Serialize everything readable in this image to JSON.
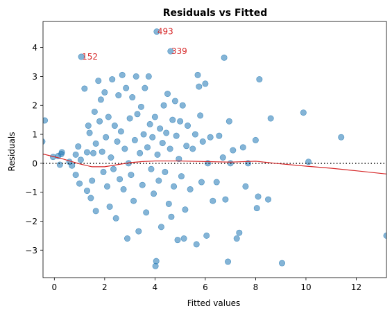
{
  "chart_data": {
    "type": "scatter",
    "title": "Residuals vs Fitted",
    "xlabel": "Fitted values",
    "ylabel": "Residuals",
    "xlim": [
      -0.45,
      13.2
    ],
    "ylim": [
      -3.95,
      4.9
    ],
    "x_ticks": [
      0,
      2,
      4,
      6,
      8,
      10,
      12
    ],
    "y_ticks": [
      -3,
      -2,
      -1,
      0,
      1,
      2,
      3,
      4
    ],
    "grid": false,
    "colors": {
      "points": "#1f77b4",
      "lowess": "#d62728",
      "annotation": "#d62728",
      "reference": "#000000"
    },
    "reference_line": {
      "y": 0,
      "style": "dotted"
    },
    "annotations": [
      {
        "text": "493",
        "x": 4.07,
        "y": 4.55
      },
      {
        "text": "339",
        "x": 4.62,
        "y": 3.87
      },
      {
        "text": "152",
        "x": 1.07,
        "y": 3.68
      }
    ],
    "lowess": [
      [
        -0.45,
        0.32
      ],
      [
        0.3,
        0.16
      ],
      [
        1.0,
        -0.02
      ],
      [
        1.5,
        -0.12
      ],
      [
        2.0,
        -0.12
      ],
      [
        2.5,
        -0.05
      ],
      [
        3.0,
        0.02
      ],
      [
        3.5,
        0.06
      ],
      [
        4.0,
        0.08
      ],
      [
        5.0,
        0.08
      ],
      [
        6.0,
        0.06
      ],
      [
        7.0,
        0.04
      ],
      [
        8.0,
        0.07
      ],
      [
        9.0,
        -0.02
      ],
      [
        10.0,
        -0.1
      ],
      [
        11.0,
        -0.17
      ],
      [
        12.0,
        -0.26
      ],
      [
        13.2,
        -0.37
      ]
    ],
    "series": [
      {
        "points": [
          [
            -0.48,
            0.75
          ],
          [
            -0.38,
            1.48
          ],
          [
            -0.05,
            0.22
          ],
          [
            0.15,
            0.25
          ],
          [
            0.22,
            -0.05
          ],
          [
            0.3,
            0.38
          ],
          [
            0.28,
            0.32
          ],
          [
            0.6,
            0.05
          ],
          [
            0.7,
            -0.08
          ],
          [
            0.85,
            0.3
          ],
          [
            0.95,
            0.58
          ],
          [
            0.85,
            -0.4
          ],
          [
            1.0,
            -0.7
          ],
          [
            1.05,
            0.12
          ],
          [
            1.07,
            3.68
          ],
          [
            1.2,
            2.58
          ],
          [
            1.3,
            0.38
          ],
          [
            1.3,
            -0.95
          ],
          [
            1.35,
            1.3
          ],
          [
            1.4,
            1.05
          ],
          [
            1.45,
            -1.2
          ],
          [
            1.5,
            -0.6
          ],
          [
            1.55,
            0.35
          ],
          [
            1.6,
            1.78
          ],
          [
            1.65,
            0.68
          ],
          [
            1.65,
            -1.65
          ],
          [
            1.75,
            2.85
          ],
          [
            1.8,
            1.45
          ],
          [
            1.85,
            2.2
          ],
          [
            1.9,
            0.4
          ],
          [
            1.95,
            -0.3
          ],
          [
            2.0,
            2.45
          ],
          [
            2.05,
            0.9
          ],
          [
            2.1,
            -0.8
          ],
          [
            2.15,
            1.6
          ],
          [
            2.2,
            -1.5
          ],
          [
            2.25,
            0.2
          ],
          [
            2.3,
            2.9
          ],
          [
            2.35,
            -0.2
          ],
          [
            2.4,
            1.3
          ],
          [
            2.45,
            -1.9
          ],
          [
            2.5,
            0.75
          ],
          [
            2.55,
            2.35
          ],
          [
            2.6,
            -0.55
          ],
          [
            2.65,
            1.1
          ],
          [
            2.7,
            3.05
          ],
          [
            2.75,
            -0.9
          ],
          [
            2.8,
            0.5
          ],
          [
            2.85,
            2.6
          ],
          [
            2.9,
            -2.6
          ],
          [
            2.95,
            0.0
          ],
          [
            3.0,
            1.55
          ],
          [
            3.05,
            -0.4
          ],
          [
            3.1,
            2.28
          ],
          [
            3.15,
            -1.3
          ],
          [
            3.2,
            0.8
          ],
          [
            3.25,
            3.0
          ],
          [
            3.3,
            1.7
          ],
          [
            3.35,
            -2.35
          ],
          [
            3.4,
            0.35
          ],
          [
            3.45,
            1.95
          ],
          [
            3.5,
            -0.75
          ],
          [
            3.55,
            1.0
          ],
          [
            3.6,
            2.6
          ],
          [
            3.65,
            -1.7
          ],
          [
            3.7,
            0.55
          ],
          [
            3.75,
            3.0
          ],
          [
            3.8,
            1.35
          ],
          [
            3.85,
            -0.2
          ],
          [
            3.9,
            0.9
          ],
          [
            3.95,
            -1.05
          ],
          [
            4.0,
            1.6
          ],
          [
            4.02,
            -3.55
          ],
          [
            4.05,
            -3.38
          ],
          [
            4.07,
            4.55
          ],
          [
            4.1,
            0.3
          ],
          [
            4.15,
            -0.6
          ],
          [
            4.2,
            1.2
          ],
          [
            4.25,
            -2.2
          ],
          [
            4.3,
            0.7
          ],
          [
            4.35,
            2.0
          ],
          [
            4.4,
            -0.3
          ],
          [
            4.45,
            1.05
          ],
          [
            4.5,
            2.4
          ],
          [
            4.55,
            -1.4
          ],
          [
            4.6,
            0.5
          ],
          [
            4.62,
            3.87
          ],
          [
            4.65,
            -1.85
          ],
          [
            4.7,
            1.5
          ],
          [
            4.75,
            -0.8
          ],
          [
            4.8,
            2.15
          ],
          [
            4.85,
            0.95
          ],
          [
            4.9,
            -2.65
          ],
          [
            4.95,
            0.15
          ],
          [
            5.0,
            1.45
          ],
          [
            5.05,
            -0.45
          ],
          [
            5.1,
            2.0
          ],
          [
            5.15,
            -2.6
          ],
          [
            5.2,
            -1.6
          ],
          [
            5.25,
            0.6
          ],
          [
            5.3,
            1.3
          ],
          [
            5.4,
            -0.9
          ],
          [
            5.5,
            0.5
          ],
          [
            5.6,
            1.0
          ],
          [
            5.65,
            -2.8
          ],
          [
            5.7,
            3.05
          ],
          [
            5.75,
            2.65
          ],
          [
            5.8,
            1.65
          ],
          [
            5.85,
            -0.65
          ],
          [
            5.9,
            0.75
          ],
          [
            6.0,
            2.75
          ],
          [
            6.05,
            -2.5
          ],
          [
            6.1,
            0.0
          ],
          [
            6.2,
            0.9
          ],
          [
            6.3,
            -1.3
          ],
          [
            6.45,
            -0.65
          ],
          [
            6.55,
            0.95
          ],
          [
            6.7,
            0.2
          ],
          [
            6.75,
            3.65
          ],
          [
            6.8,
            -1.25
          ],
          [
            6.9,
            -3.4
          ],
          [
            6.95,
            1.45
          ],
          [
            7.0,
            0.0
          ],
          [
            7.1,
            0.45
          ],
          [
            7.25,
            -2.6
          ],
          [
            7.35,
            -2.4
          ],
          [
            7.5,
            0.55
          ],
          [
            7.6,
            -0.8
          ],
          [
            7.7,
            0.0
          ],
          [
            8.0,
            0.8
          ],
          [
            8.05,
            -1.55
          ],
          [
            8.15,
            2.9
          ],
          [
            8.1,
            -1.15
          ],
          [
            8.5,
            -1.25
          ],
          [
            8.6,
            1.55
          ],
          [
            9.05,
            -3.45
          ],
          [
            9.9,
            1.75
          ],
          [
            10.1,
            0.05
          ],
          [
            11.4,
            0.9
          ],
          [
            13.2,
            -2.5
          ]
        ]
      }
    ]
  }
}
